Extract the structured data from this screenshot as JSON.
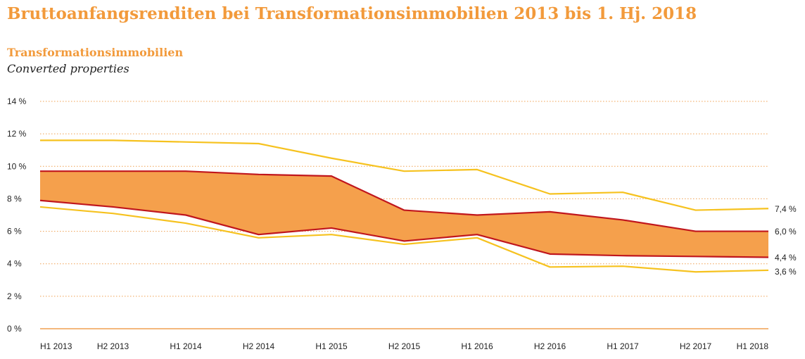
{
  "title": "Bruttoanfangsrenditen bei Transformationsimmobilien 2013 bis 1. Hj. 2018",
  "subtitle_de": "Transformationsimmobilien",
  "subtitle_en": "Converted properties",
  "colors": {
    "title": "#f29a3b",
    "band_fill": "#f5a04c",
    "inner_line": "#c0161d",
    "outer_line": "#f6c21f",
    "grid": "#f0a050",
    "axis": "#f0a050"
  },
  "chart_data": {
    "type": "area",
    "categories": [
      "H1 2013",
      "H2 2013",
      "H1 2014",
      "H2 2014",
      "H1 2015",
      "H2 2015",
      "H1 2016",
      "H2 2016",
      "H1 2017",
      "H2 2017",
      "H1 2018"
    ],
    "ylim": [
      0,
      14
    ],
    "yticks": [
      0,
      2,
      4,
      6,
      8,
      10,
      12,
      14
    ],
    "ytick_labels": [
      "0 %",
      "2 %",
      "4 %",
      "6 %",
      "8 %",
      "10 %",
      "12 %",
      "14 %"
    ],
    "grid": "horizontal dotted",
    "series": [
      {
        "role": "outer-upper",
        "values": [
          11.6,
          11.6,
          11.5,
          11.4,
          10.5,
          9.7,
          9.8,
          8.3,
          8.4,
          7.3,
          7.4
        ]
      },
      {
        "role": "inner-upper",
        "values": [
          9.7,
          9.7,
          9.7,
          9.5,
          9.4,
          7.3,
          7.0,
          7.2,
          6.7,
          6.0,
          6.0
        ]
      },
      {
        "role": "inner-lower",
        "values": [
          7.9,
          7.5,
          7.0,
          5.8,
          6.2,
          5.4,
          5.8,
          4.6,
          4.5,
          4.45,
          4.4
        ]
      },
      {
        "role": "outer-lower",
        "values": [
          7.5,
          7.1,
          6.5,
          5.6,
          5.8,
          5.2,
          5.6,
          3.8,
          3.85,
          3.5,
          3.6
        ]
      }
    ],
    "end_labels": [
      "7,4 %",
      "6,0 %",
      "4,4 %",
      "3,6 %"
    ]
  }
}
